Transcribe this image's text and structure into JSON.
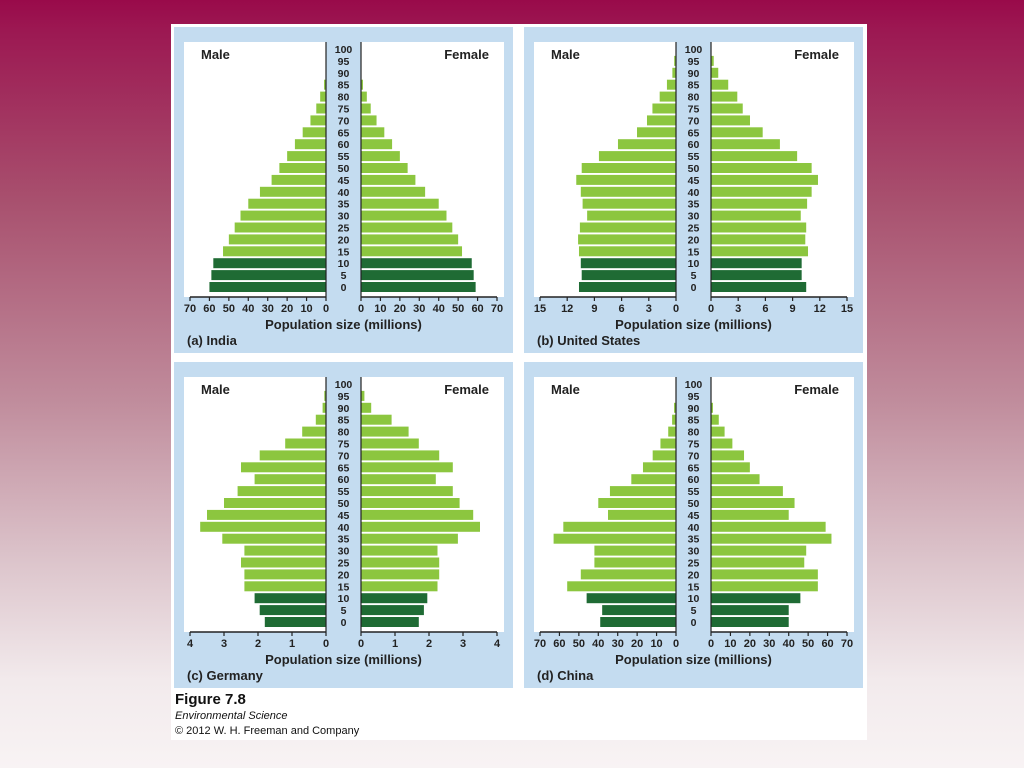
{
  "figure": {
    "label": "Figure 7.8",
    "book": "Environmental Science",
    "copyright": "© 2012 W. H. Freeman and Company"
  },
  "colors": {
    "bar_young": "#1F6B34",
    "bar_old": "#8CC63F",
    "panel_bg": "#C4DCF0",
    "plot_bg": "#FFFFFF"
  },
  "chart_data": [
    {
      "type": "bar",
      "subtype": "population-pyramid",
      "panel_label": "(a) India",
      "male_label": "Male",
      "female_label": "Female",
      "xlabel": "Population size (millions)",
      "xlim": [
        0,
        70
      ],
      "xticks": [
        "70",
        "60",
        "50",
        "40",
        "30",
        "20",
        "10",
        "0"
      ],
      "xticks_right": [
        "0",
        "10",
        "20",
        "30",
        "40",
        "50",
        "60",
        "70"
      ],
      "age_groups": [
        "100",
        "95",
        "90",
        "85",
        "80",
        "75",
        "70",
        "65",
        "60",
        "55",
        "50",
        "45",
        "40",
        "35",
        "30",
        "25",
        "20",
        "15",
        "10",
        "5",
        "0"
      ],
      "series": [
        {
          "name": "Male",
          "values": [
            0,
            0,
            0,
            1,
            3,
            5,
            8,
            12,
            16,
            20,
            24,
            28,
            34,
            40,
            44,
            47,
            50,
            53,
            58,
            59,
            60
          ]
        },
        {
          "name": "Female",
          "values": [
            0,
            0,
            0,
            1,
            3,
            5,
            8,
            12,
            16,
            20,
            24,
            28,
            33,
            40,
            44,
            47,
            50,
            52,
            57,
            58,
            59
          ]
        }
      ]
    },
    {
      "type": "bar",
      "subtype": "population-pyramid",
      "panel_label": "(b) United States",
      "male_label": "Male",
      "female_label": "Female",
      "xlabel": "Population size (millions)",
      "xlim": [
        0,
        15
      ],
      "xticks": [
        "15",
        "12",
        "9",
        "6",
        "3",
        "0"
      ],
      "xticks_right": [
        "0",
        "3",
        "6",
        "9",
        "12",
        "15"
      ],
      "age_groups": [
        "100",
        "95",
        "90",
        "85",
        "80",
        "75",
        "70",
        "65",
        "60",
        "55",
        "50",
        "45",
        "40",
        "35",
        "30",
        "25",
        "20",
        "15",
        "10",
        "5",
        "0"
      ],
      "series": [
        {
          "name": "Male",
          "values": [
            0,
            0.2,
            0.4,
            1,
            1.8,
            2.6,
            3.2,
            4.3,
            6.4,
            8.5,
            10.4,
            11,
            10.5,
            10.3,
            9.8,
            10.6,
            10.8,
            10.7,
            10.5,
            10.4,
            10.7
          ]
        },
        {
          "name": "Female",
          "values": [
            0,
            0.3,
            0.8,
            1.9,
            2.9,
            3.5,
            4.3,
            5.7,
            7.6,
            9.5,
            11.1,
            11.8,
            11.1,
            10.6,
            9.9,
            10.5,
            10.4,
            10.7,
            10,
            10,
            10.5
          ]
        }
      ]
    },
    {
      "type": "bar",
      "subtype": "population-pyramid",
      "panel_label": "(c) Germany",
      "male_label": "Male",
      "female_label": "Female",
      "xlabel": "Population size (millions)",
      "xlim": [
        0,
        4
      ],
      "xticks": [
        "4",
        "3",
        "2",
        "1",
        "0"
      ],
      "xticks_right": [
        "0",
        "1",
        "2",
        "3",
        "4"
      ],
      "age_groups": [
        "100",
        "95",
        "90",
        "85",
        "80",
        "75",
        "70",
        "65",
        "60",
        "55",
        "50",
        "45",
        "40",
        "35",
        "30",
        "25",
        "20",
        "15",
        "10",
        "5",
        "0"
      ],
      "series": [
        {
          "name": "Male",
          "values": [
            0,
            0.05,
            0.1,
            0.3,
            0.7,
            1.2,
            1.95,
            2.5,
            2.1,
            2.6,
            3.0,
            3.5,
            3.7,
            3.05,
            2.4,
            2.5,
            2.4,
            2.4,
            2.1,
            1.95,
            1.8
          ]
        },
        {
          "name": "Female",
          "values": [
            0,
            0.1,
            0.3,
            0.9,
            1.4,
            1.7,
            2.3,
            2.7,
            2.2,
            2.7,
            2.9,
            3.3,
            3.5,
            2.85,
            2.25,
            2.3,
            2.3,
            2.25,
            1.95,
            1.85,
            1.7
          ]
        }
      ]
    },
    {
      "type": "bar",
      "subtype": "population-pyramid",
      "panel_label": "(d) China",
      "male_label": "Male",
      "female_label": "Female",
      "xlabel": "Population size (millions)",
      "xlim": [
        0,
        70
      ],
      "xticks": [
        "70",
        "60",
        "50",
        "40",
        "30",
        "20",
        "10",
        "0"
      ],
      "xticks_right": [
        "0",
        "10",
        "20",
        "30",
        "40",
        "50",
        "60",
        "70"
      ],
      "age_groups": [
        "100",
        "95",
        "90",
        "85",
        "80",
        "75",
        "70",
        "65",
        "60",
        "55",
        "50",
        "45",
        "40",
        "35",
        "30",
        "25",
        "20",
        "15",
        "10",
        "5",
        "0"
      ],
      "series": [
        {
          "name": "Male",
          "values": [
            0,
            0,
            1,
            2,
            4,
            8,
            12,
            17,
            23,
            34,
            40,
            35,
            58,
            63,
            42,
            42,
            49,
            56,
            46,
            38,
            39
          ]
        },
        {
          "name": "Female",
          "values": [
            0,
            0,
            1,
            4,
            7,
            11,
            17,
            20,
            25,
            37,
            43,
            40,
            59,
            62,
            49,
            48,
            55,
            55,
            46,
            40,
            40
          ]
        }
      ]
    }
  ]
}
